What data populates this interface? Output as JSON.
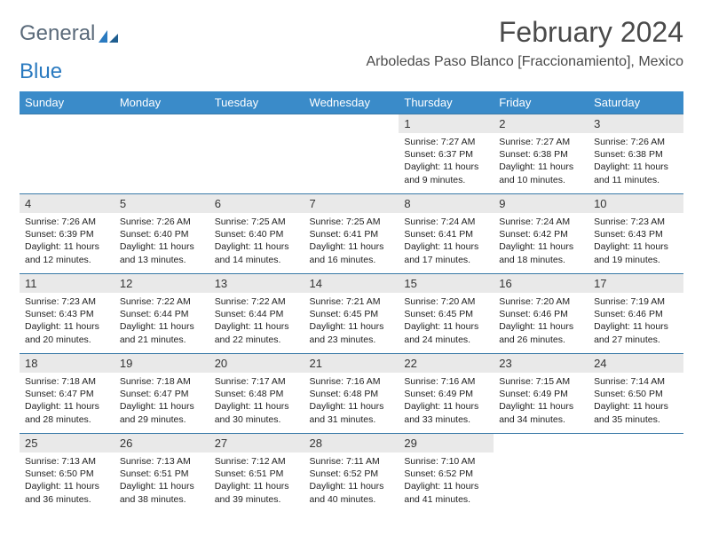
{
  "logo": {
    "text_a": "General",
    "text_b": "Blue",
    "color_a": "#5a6a7a",
    "color_b": "#2a7ac0"
  },
  "title": "February 2024",
  "location": "Arboledas Paso Blanco [Fraccionamiento], Mexico",
  "colors": {
    "header_bg": "#3a8bc9",
    "header_fg": "#ffffff",
    "daynum_bg": "#e9e9e9",
    "rule": "#3a7aa8"
  },
  "dayNames": [
    "Sunday",
    "Monday",
    "Tuesday",
    "Wednesday",
    "Thursday",
    "Friday",
    "Saturday"
  ],
  "weeks": [
    [
      null,
      null,
      null,
      null,
      {
        "n": 1,
        "sr": "7:27 AM",
        "ss": "6:37 PM",
        "dl": "11 hours and 9 minutes."
      },
      {
        "n": 2,
        "sr": "7:27 AM",
        "ss": "6:38 PM",
        "dl": "11 hours and 10 minutes."
      },
      {
        "n": 3,
        "sr": "7:26 AM",
        "ss": "6:38 PM",
        "dl": "11 hours and 11 minutes."
      }
    ],
    [
      {
        "n": 4,
        "sr": "7:26 AM",
        "ss": "6:39 PM",
        "dl": "11 hours and 12 minutes."
      },
      {
        "n": 5,
        "sr": "7:26 AM",
        "ss": "6:40 PM",
        "dl": "11 hours and 13 minutes."
      },
      {
        "n": 6,
        "sr": "7:25 AM",
        "ss": "6:40 PM",
        "dl": "11 hours and 14 minutes."
      },
      {
        "n": 7,
        "sr": "7:25 AM",
        "ss": "6:41 PM",
        "dl": "11 hours and 16 minutes."
      },
      {
        "n": 8,
        "sr": "7:24 AM",
        "ss": "6:41 PM",
        "dl": "11 hours and 17 minutes."
      },
      {
        "n": 9,
        "sr": "7:24 AM",
        "ss": "6:42 PM",
        "dl": "11 hours and 18 minutes."
      },
      {
        "n": 10,
        "sr": "7:23 AM",
        "ss": "6:43 PM",
        "dl": "11 hours and 19 minutes."
      }
    ],
    [
      {
        "n": 11,
        "sr": "7:23 AM",
        "ss": "6:43 PM",
        "dl": "11 hours and 20 minutes."
      },
      {
        "n": 12,
        "sr": "7:22 AM",
        "ss": "6:44 PM",
        "dl": "11 hours and 21 minutes."
      },
      {
        "n": 13,
        "sr": "7:22 AM",
        "ss": "6:44 PM",
        "dl": "11 hours and 22 minutes."
      },
      {
        "n": 14,
        "sr": "7:21 AM",
        "ss": "6:45 PM",
        "dl": "11 hours and 23 minutes."
      },
      {
        "n": 15,
        "sr": "7:20 AM",
        "ss": "6:45 PM",
        "dl": "11 hours and 24 minutes."
      },
      {
        "n": 16,
        "sr": "7:20 AM",
        "ss": "6:46 PM",
        "dl": "11 hours and 26 minutes."
      },
      {
        "n": 17,
        "sr": "7:19 AM",
        "ss": "6:46 PM",
        "dl": "11 hours and 27 minutes."
      }
    ],
    [
      {
        "n": 18,
        "sr": "7:18 AM",
        "ss": "6:47 PM",
        "dl": "11 hours and 28 minutes."
      },
      {
        "n": 19,
        "sr": "7:18 AM",
        "ss": "6:47 PM",
        "dl": "11 hours and 29 minutes."
      },
      {
        "n": 20,
        "sr": "7:17 AM",
        "ss": "6:48 PM",
        "dl": "11 hours and 30 minutes."
      },
      {
        "n": 21,
        "sr": "7:16 AM",
        "ss": "6:48 PM",
        "dl": "11 hours and 31 minutes."
      },
      {
        "n": 22,
        "sr": "7:16 AM",
        "ss": "6:49 PM",
        "dl": "11 hours and 33 minutes."
      },
      {
        "n": 23,
        "sr": "7:15 AM",
        "ss": "6:49 PM",
        "dl": "11 hours and 34 minutes."
      },
      {
        "n": 24,
        "sr": "7:14 AM",
        "ss": "6:50 PM",
        "dl": "11 hours and 35 minutes."
      }
    ],
    [
      {
        "n": 25,
        "sr": "7:13 AM",
        "ss": "6:50 PM",
        "dl": "11 hours and 36 minutes."
      },
      {
        "n": 26,
        "sr": "7:13 AM",
        "ss": "6:51 PM",
        "dl": "11 hours and 38 minutes."
      },
      {
        "n": 27,
        "sr": "7:12 AM",
        "ss": "6:51 PM",
        "dl": "11 hours and 39 minutes."
      },
      {
        "n": 28,
        "sr": "7:11 AM",
        "ss": "6:52 PM",
        "dl": "11 hours and 40 minutes."
      },
      {
        "n": 29,
        "sr": "7:10 AM",
        "ss": "6:52 PM",
        "dl": "11 hours and 41 minutes."
      },
      null,
      null
    ]
  ],
  "labels": {
    "sunrise": "Sunrise:",
    "sunset": "Sunset:",
    "daylight": "Daylight:"
  }
}
